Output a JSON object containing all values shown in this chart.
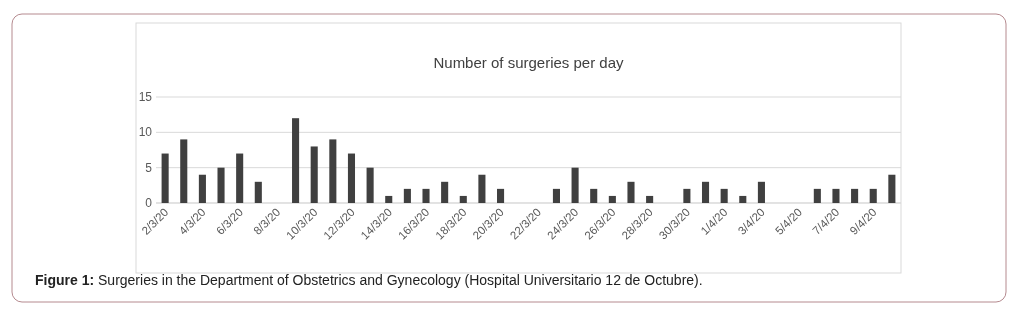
{
  "chart_data": {
    "type": "bar",
    "title": "Number of surgeries per day",
    "categories": [
      "2/3/20",
      null,
      "4/3/20",
      null,
      "6/3/20",
      null,
      "8/3/20",
      null,
      "10/3/20",
      null,
      "12/3/20",
      null,
      "14/3/20",
      null,
      "16/3/20",
      null,
      "18/3/20",
      null,
      "20/3/20",
      null,
      "22/3/20",
      null,
      "24/3/20",
      null,
      "26/3/20",
      null,
      "28/3/20",
      null,
      "30/3/20",
      null,
      "1/4/20",
      null,
      "3/4/20",
      null,
      "5/4/20",
      null,
      "7/4/20",
      null,
      "9/4/20",
      null
    ],
    "values": [
      7,
      9,
      4,
      5,
      7,
      3,
      0,
      12,
      8,
      9,
      7,
      5,
      1,
      2,
      2,
      3,
      1,
      4,
      2,
      0,
      0,
      2,
      5,
      2,
      1,
      3,
      1,
      0,
      2,
      3,
      2,
      1,
      3,
      0,
      0,
      2,
      2,
      2,
      2,
      4
    ],
    "color": "#404040",
    "ylim": [
      0,
      15
    ],
    "yticks": [
      0,
      5,
      10,
      15
    ],
    "grid": "y",
    "annotations": [
      "Figure 1: Surgeries in the Department of Obstetrics and Gynecology (Hospital Universitario 12 de Octubre)."
    ]
  }
}
